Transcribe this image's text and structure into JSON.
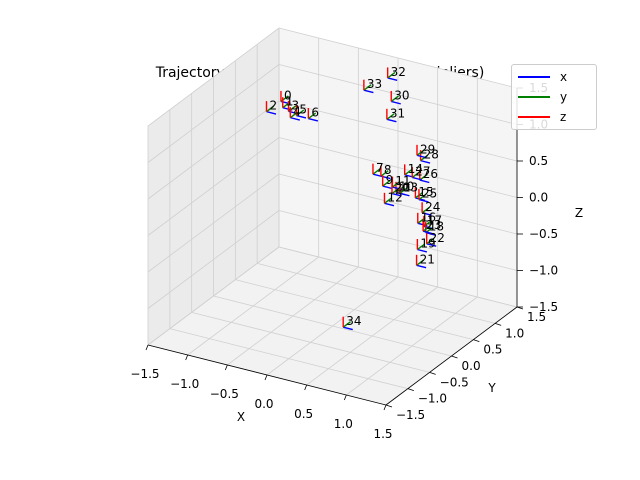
{
  "chart_data": {
    "type": "scatter",
    "projection": "3d",
    "title": "Trajectory estimated using Kabsch (PnP inliers)",
    "xlabel": "X",
    "ylabel": "Y",
    "zlabel": "Z",
    "xlim": [
      -1.5,
      1.5
    ],
    "ylim": [
      -1.5,
      1.5
    ],
    "zlim": [
      -1.5,
      1.5
    ],
    "x_ticks": [
      "−1.5",
      "−1.0",
      "−0.5",
      "0.0",
      "0.5",
      "1.0",
      "1.5"
    ],
    "y_ticks": [
      "−1.5",
      "−1.0",
      "−0.5",
      "0.0",
      "0.5",
      "1.0",
      "1.5"
    ],
    "z_ticks": [
      "−1.5",
      "−1.0",
      "−0.5",
      "0.0",
      "0.5",
      "1.0",
      "1.5"
    ],
    "grid": true,
    "legend_position": "top-right",
    "series": [
      {
        "name": "x",
        "color": "#0000ff"
      },
      {
        "name": "y",
        "color": "#008000"
      },
      {
        "name": "z",
        "color": "#ff0000"
      }
    ],
    "points": [
      {
        "label": "0",
        "x": -1.2,
        "y": 1.0,
        "z": 0.8
      },
      {
        "label": "1",
        "x": -1.15,
        "y": 0.95,
        "z": 0.75
      },
      {
        "label": "2",
        "x": -1.3,
        "y": 0.85,
        "z": 0.7
      },
      {
        "label": "3",
        "x": -1.05,
        "y": 0.9,
        "z": 0.75
      },
      {
        "label": "4",
        "x": -1.0,
        "y": 0.85,
        "z": 0.7
      },
      {
        "label": "5",
        "x": -0.95,
        "y": 0.9,
        "z": 0.72
      },
      {
        "label": "6",
        "x": -0.8,
        "y": 0.9,
        "z": 0.72
      },
      {
        "label": "7",
        "x": 0.4,
        "y": 0.2,
        "z": 0.6
      },
      {
        "label": "8",
        "x": 0.5,
        "y": 0.2,
        "z": 0.6
      },
      {
        "label": "9",
        "x": 0.55,
        "y": 0.15,
        "z": 0.5
      },
      {
        "label": "10",
        "x": 0.8,
        "y": 0.0,
        "z": 0.55
      },
      {
        "label": "11",
        "x": 0.7,
        "y": 0.1,
        "z": 0.55
      },
      {
        "label": "12",
        "x": 0.6,
        "y": 0.1,
        "z": 0.3
      },
      {
        "label": "13",
        "x": 0.85,
        "y": 0.0,
        "z": 0.55
      },
      {
        "label": "14",
        "x": 0.8,
        "y": 0.2,
        "z": 0.7
      },
      {
        "label": "15",
        "x": 1.1,
        "y": -0.1,
        "z": 0.6
      },
      {
        "label": "16",
        "x": 1.35,
        "y": -0.5,
        "z": 0.5
      },
      {
        "label": "17",
        "x": 1.4,
        "y": -0.45,
        "z": 0.45
      },
      {
        "label": "18",
        "x": 1.45,
        "y": -0.5,
        "z": 0.4
      },
      {
        "label": "19",
        "x": 1.4,
        "y": -0.6,
        "z": 0.2
      },
      {
        "label": "20",
        "x": 0.75,
        "y": 0.0,
        "z": 0.52
      },
      {
        "label": "21",
        "x": 1.5,
        "y": -0.8,
        "z": 0.1
      },
      {
        "label": "22",
        "x": 1.6,
        "y": -0.75,
        "z": 0.4
      },
      {
        "label": "23",
        "x": 1.5,
        "y": -0.65,
        "z": 0.5
      },
      {
        "label": "24",
        "x": 1.35,
        "y": -0.4,
        "z": 0.6
      },
      {
        "label": "25",
        "x": 1.2,
        "y": -0.2,
        "z": 0.65
      },
      {
        "label": "26",
        "x": 1.1,
        "y": 0.0,
        "z": 0.8
      },
      {
        "label": "27",
        "x": 0.95,
        "y": 0.1,
        "z": 0.75
      },
      {
        "label": "28",
        "x": 1.0,
        "y": 0.2,
        "z": 0.95
      },
      {
        "label": "29",
        "x": 0.9,
        "y": 0.3,
        "z": 0.95
      },
      {
        "label": "30",
        "x": 0.3,
        "y": 0.8,
        "z": 1.3
      },
      {
        "label": "31",
        "x": 0.3,
        "y": 0.7,
        "z": 1.1
      },
      {
        "label": "32",
        "x": 0.2,
        "y": 0.9,
        "z": 1.55
      },
      {
        "label": "33",
        "x": -0.1,
        "y": 0.9,
        "z": 1.3
      },
      {
        "label": "34",
        "x": 0.3,
        "y": -0.3,
        "z": -1.3
      }
    ]
  }
}
